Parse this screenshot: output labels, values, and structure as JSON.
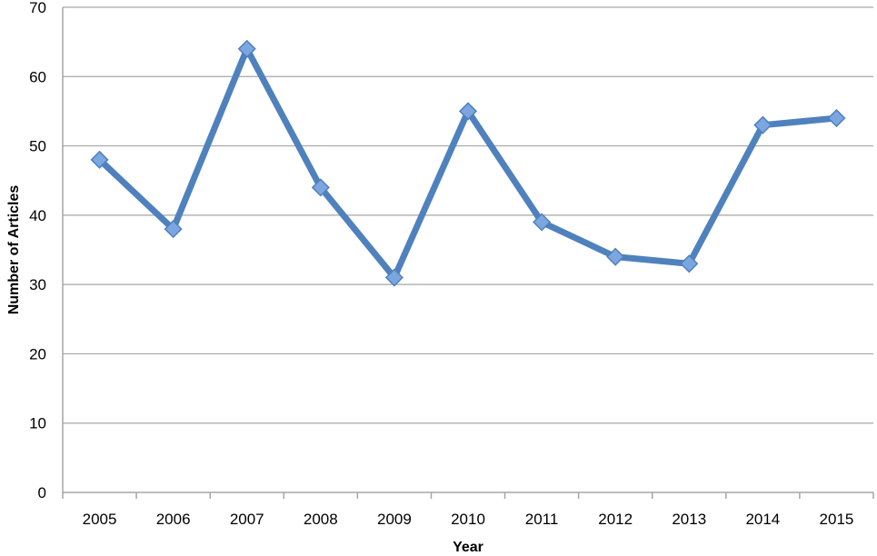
{
  "chart_data": {
    "type": "line",
    "title": "",
    "xlabel": "Year",
    "ylabel": "Number of Articles",
    "categories": [
      "2005",
      "2006",
      "2007",
      "2008",
      "2009",
      "2010",
      "2011",
      "2012",
      "2013",
      "2014",
      "2015"
    ],
    "series": [
      {
        "values": [
          48,
          38,
          64,
          44,
          31,
          55,
          39,
          34,
          33,
          53,
          54
        ]
      }
    ],
    "ylim": [
      0,
      70
    ],
    "yticks": [
      "0",
      "10",
      "20",
      "30",
      "40",
      "50",
      "60",
      "70"
    ],
    "grid": true,
    "legend": "none",
    "colors": {
      "line": "#4f81bd",
      "marker_fill": "#7ba6df",
      "marker_stroke": "#4f81bd",
      "grid": "#a6a6a6",
      "axis": "#a6a6a6"
    }
  }
}
